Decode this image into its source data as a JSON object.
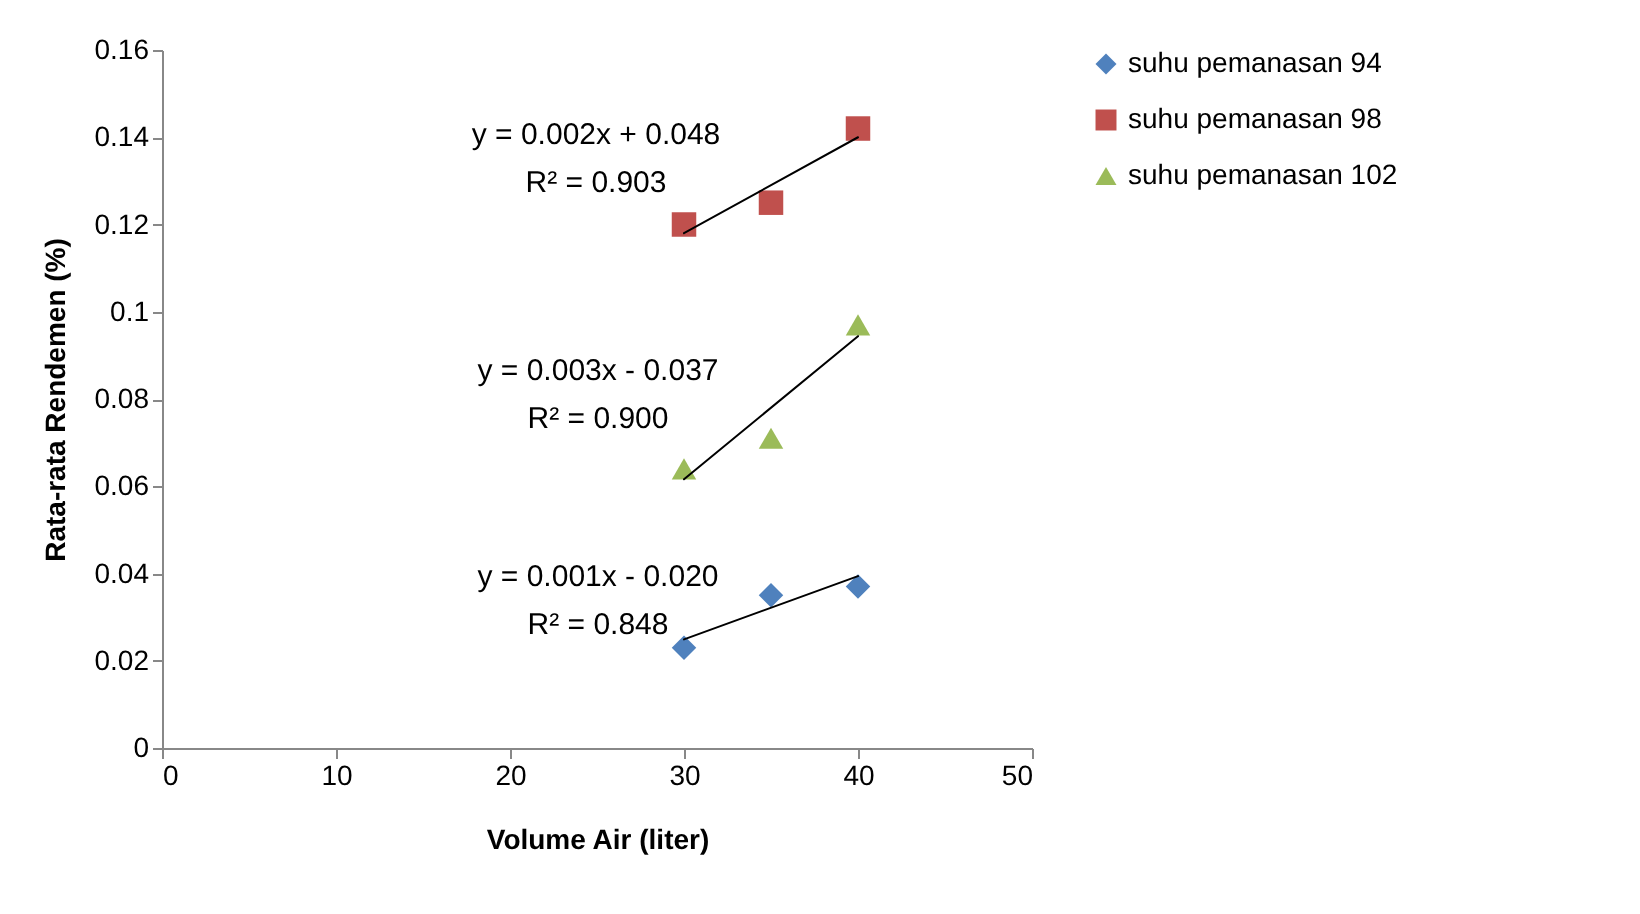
{
  "chart_data": {
    "type": "scatter",
    "xlabel": "Volume Air (liter)",
    "ylabel": "Rata-rata Rendemen (%)",
    "xlim": [
      0,
      50
    ],
    "xticks": [
      0,
      10,
      20,
      30,
      40,
      50
    ],
    "ylim": [
      0,
      0.16
    ],
    "yticks": [
      0,
      0.02,
      0.04,
      0.06,
      0.08,
      0.1,
      0.12,
      0.14,
      0.16
    ],
    "grid": false,
    "legend": "right",
    "series": [
      {
        "name": "suhu pemanasan 94",
        "color": "#4f81bd",
        "marker": "diamond",
        "x": [
          30,
          35,
          40
        ],
        "values": [
          0.023,
          0.035,
          0.037
        ]
      },
      {
        "name": "suhu pemanasan 98",
        "color": "#c0504d",
        "marker": "square",
        "x": [
          30,
          35,
          40
        ],
        "values": [
          0.12,
          0.125,
          0.142
        ]
      },
      {
        "name": "suhu pemanasan 102",
        "color": "#9bbb59",
        "marker": "triangle",
        "x": [
          30,
          35,
          40
        ],
        "values": [
          0.064,
          0.071,
          0.097
        ]
      },
      {
        "type": "line",
        "color": "#000000",
        "x": [
          30,
          40
        ],
        "values": [
          0.0249,
          0.0394
        ]
      },
      {
        "type": "line",
        "color": "#000000",
        "x": [
          30,
          40
        ],
        "values": [
          0.118,
          0.14
        ]
      },
      {
        "type": "line",
        "color": "#000000",
        "x": [
          30,
          40
        ],
        "values": [
          0.0616,
          0.0944
        ]
      }
    ],
    "annotations": [
      "y = 0.002x + 0.048\nR² = 0.903",
      "y = 0.003x - 0.037\nR² = 0.900",
      "y = 0.001x - 0.020\nR² = 0.848"
    ]
  }
}
